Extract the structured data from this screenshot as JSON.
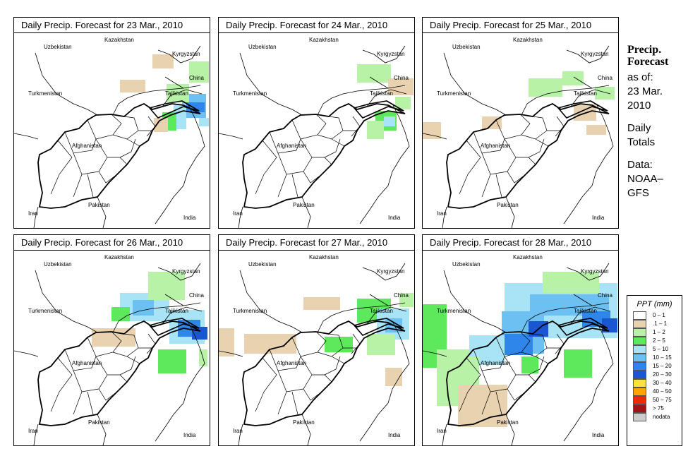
{
  "panels": [
    {
      "title": "Daily Precip. Forecast for  23 Mar., 2010"
    },
    {
      "title": "Daily Precip. Forecast for  24 Mar., 2010"
    },
    {
      "title": "Daily Precip. Forecast for  25 Mar., 2010"
    },
    {
      "title": "Daily Precip. Forecast for  26 Mar., 2010"
    },
    {
      "title": "Daily Precip. Forecast for  27 Mar., 2010"
    },
    {
      "title": "Daily Precip. Forecast for  28 Mar., 2010"
    }
  ],
  "map_labels": {
    "kazakhstan": "Kazakhstan",
    "uzbekistan": "Uzbekistan",
    "kyrgyzstan": "Kyrgyzstan",
    "china": "China",
    "turkmenistan": "Turkmenistan",
    "tajikistan": "Tajikistan",
    "afghanistan": "Afghanistan",
    "pakistan": "Pakistan",
    "iran": "Iran",
    "india": "India"
  },
  "sidebar": {
    "title_line1": "Precip.",
    "title_line2": "Forecast",
    "as_of_label": "as of:",
    "as_of_date1": "23 Mar.",
    "as_of_date2": "2010",
    "daily_line1": "Daily",
    "daily_line2": "Totals",
    "data_line1": "Data:",
    "data_line2": "NOAA–",
    "data_line3": "GFS"
  },
  "legend": {
    "title": "PPT (mm)",
    "classes": [
      {
        "range": "0 – 1",
        "color": "#ffffff"
      },
      {
        "range": ".1 – 1",
        "color": "#e8d2b0"
      },
      {
        "range": "1 – 2",
        "color": "#b7f2a6"
      },
      {
        "range": "2 – 5",
        "color": "#5ee85c"
      },
      {
        "range": "5 – 10",
        "color": "#a9e4f6"
      },
      {
        "range": "10 – 15",
        "color": "#6cc0f2"
      },
      {
        "range": "15 – 20",
        "color": "#2f86ea"
      },
      {
        "range": "20 – 30",
        "color": "#1a55d2"
      },
      {
        "range": "30 – 40",
        "color": "#ffe040"
      },
      {
        "range": "40 – 50",
        "color": "#ffa500"
      },
      {
        "range": "50 – 75",
        "color": "#ee2a00"
      },
      {
        "range": "> 75",
        "color": "#a01414"
      },
      {
        "range": "nodata",
        "color": "#cccccc"
      }
    ]
  }
}
